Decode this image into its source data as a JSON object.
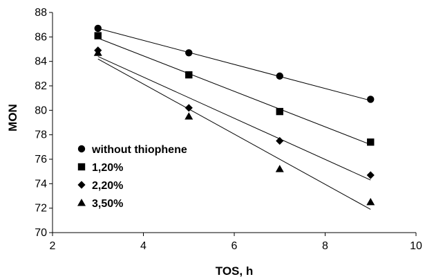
{
  "chart_data": {
    "type": "scatter",
    "title": "",
    "xlabel": "TOS, h",
    "ylabel": "MON",
    "xlim": [
      2,
      10
    ],
    "ylim": [
      70,
      88
    ],
    "x_ticks": [
      2,
      4,
      6,
      8,
      10
    ],
    "y_ticks": [
      70,
      72,
      74,
      76,
      78,
      80,
      82,
      84,
      86,
      88
    ],
    "grid": false,
    "legend_position": "left",
    "trendlines": true,
    "series": [
      {
        "name": "without thiophene",
        "marker": "circle",
        "color": "#000000",
        "x": [
          3,
          5,
          7,
          9
        ],
        "y": [
          86.7,
          84.7,
          82.8,
          80.9
        ],
        "fit": [
          [
            3,
            86.7
          ],
          [
            9,
            80.8
          ]
        ]
      },
      {
        "name": "1,20%",
        "marker": "square",
        "color": "#000000",
        "x": [
          3,
          5,
          7,
          9
        ],
        "y": [
          86.1,
          82.9,
          79.9,
          77.4
        ],
        "fit": [
          [
            3,
            85.9
          ],
          [
            9,
            77.2
          ]
        ]
      },
      {
        "name": "2,20%",
        "marker": "diamond",
        "color": "#000000",
        "x": [
          3,
          5,
          7,
          9
        ],
        "y": [
          84.9,
          80.2,
          77.5,
          74.7
        ],
        "fit": [
          [
            3,
            84.4
          ],
          [
            9,
            74.3
          ]
        ]
      },
      {
        "name": "3,50%",
        "marker": "triangle",
        "color": "#000000",
        "x": [
          3,
          5,
          7,
          9
        ],
        "y": [
          84.7,
          79.5,
          75.2,
          72.5
        ],
        "fit": [
          [
            3,
            84.2
          ],
          [
            9,
            71.9
          ]
        ]
      }
    ]
  }
}
